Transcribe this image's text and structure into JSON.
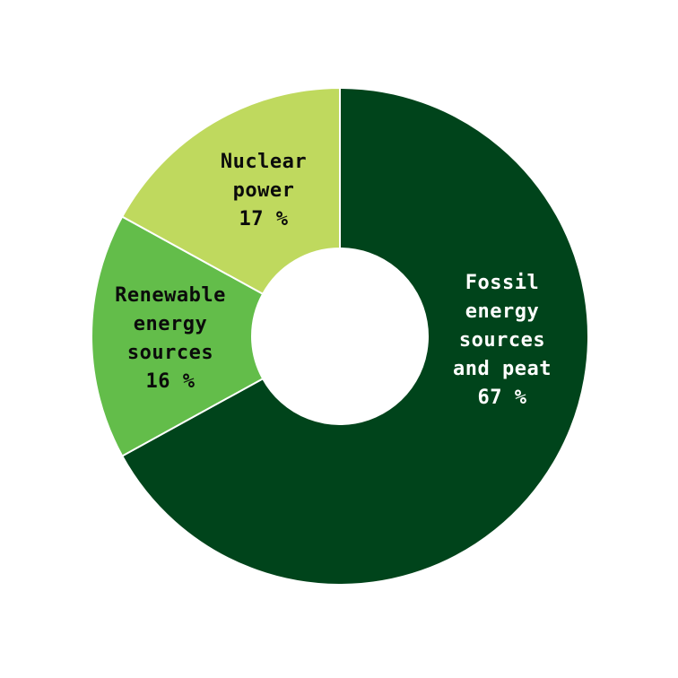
{
  "chart_data": {
    "type": "pie",
    "variant": "donut",
    "title": "",
    "slices": [
      {
        "label_lines": [
          "Fossil",
          "energy",
          "sources",
          "and peat"
        ],
        "value_label": "67 %",
        "value": 67,
        "color": "#00441b",
        "text_color": "#ffffff"
      },
      {
        "label_lines": [
          "Renewable",
          "energy",
          "sources"
        ],
        "value_label": "16 %",
        "value": 16,
        "color": "#63bd4a",
        "text_color": "#0b0b0b"
      },
      {
        "label_lines": [
          "Nuclear",
          "power"
        ],
        "value_label": "17 %",
        "value": 17,
        "color": "#bfd95e",
        "text_color": "#0b0b0b"
      }
    ],
    "start_angle_deg": 0,
    "direction": "clockwise",
    "separator_color": "#ffffff",
    "hole_color": "#ffffff"
  }
}
